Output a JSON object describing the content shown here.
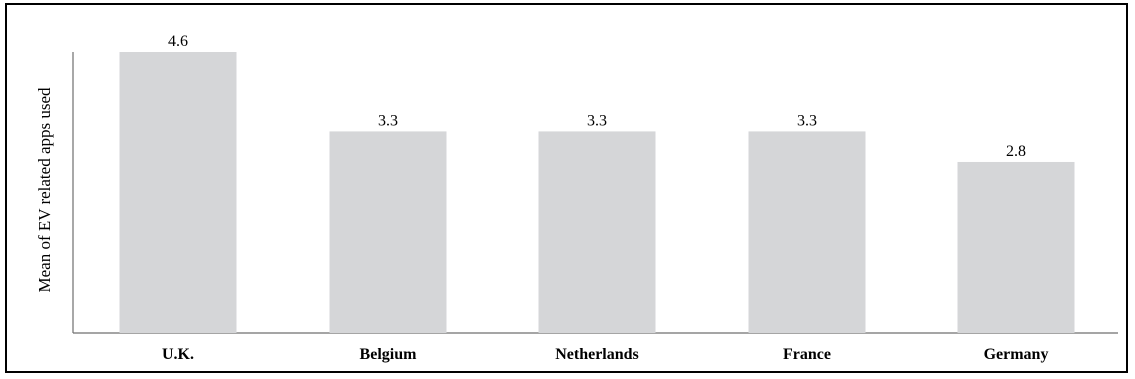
{
  "chart_data": {
    "type": "bar",
    "categories": [
      "U.K.",
      "Belgium",
      "Netherlands",
      "France",
      "Germany"
    ],
    "values": [
      4.6,
      3.3,
      3.3,
      3.3,
      2.8
    ],
    "data_labels": [
      "4.6",
      "3.3",
      "3.3",
      "3.3",
      "2.8"
    ],
    "title": "",
    "xlabel": "",
    "ylabel": "Mean of EV related apps used",
    "ylim": [
      0,
      4.6
    ],
    "grid": false,
    "legend": "none",
    "bar_color": "#d5d6d8",
    "axis_color": "#6f6f6f"
  }
}
